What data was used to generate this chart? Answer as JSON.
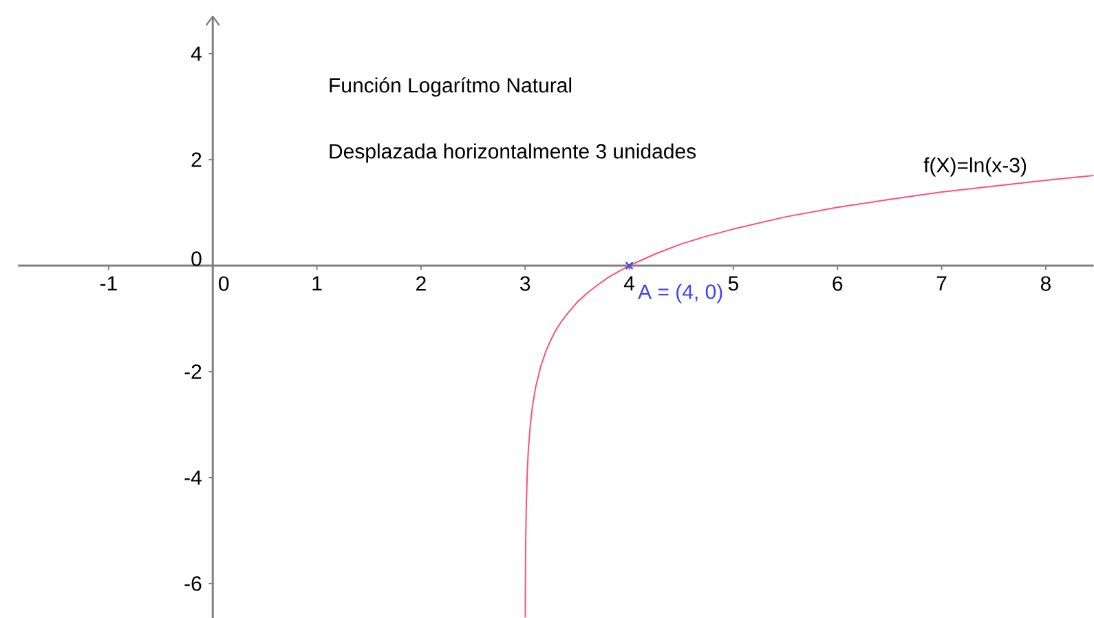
{
  "chart_data": {
    "type": "line",
    "title": "Función Logarítmo Natural",
    "subtitle": "Desplazada horizontalmente 3 unidades",
    "xlim": [
      -1.87,
      8.46
    ],
    "ylim": [
      -6.65,
      4.7
    ],
    "xticks": [
      -1,
      0,
      1,
      2,
      3,
      4,
      5,
      6,
      7,
      8
    ],
    "yticks": [
      -6,
      -4,
      -2,
      0,
      2,
      4
    ],
    "series": [
      {
        "name": "f(X)=ln(x-3)",
        "color": "#ff4f7b",
        "x": [
          3.0013,
          3.002,
          3.005,
          3.01,
          3.02,
          3.03,
          3.05,
          3.07,
          3.1,
          3.15,
          3.2,
          3.25,
          3.3,
          3.35,
          3.4,
          3.5,
          3.6,
          3.7,
          3.8,
          3.9,
          4,
          4.25,
          4.5,
          4.75,
          5,
          5.5,
          6,
          6.5,
          7,
          7.5,
          8,
          8.46
        ],
        "values": [
          -6.64,
          -6.21,
          -5.3,
          -4.61,
          -3.91,
          -3.51,
          -3.0,
          -2.66,
          -2.3,
          -1.9,
          -1.61,
          -1.39,
          -1.2,
          -1.05,
          -0.92,
          -0.69,
          -0.51,
          -0.36,
          -0.22,
          -0.11,
          0,
          0.22,
          0.41,
          0.56,
          0.69,
          0.92,
          1.1,
          1.25,
          1.39,
          1.5,
          1.61,
          1.7
        ]
      },
      {
        "name": "A = (4, 0)",
        "type": "scatter",
        "marker": "cross",
        "color": "#4040ff",
        "x": [
          4
        ],
        "values": [
          0
        ]
      }
    ]
  }
}
